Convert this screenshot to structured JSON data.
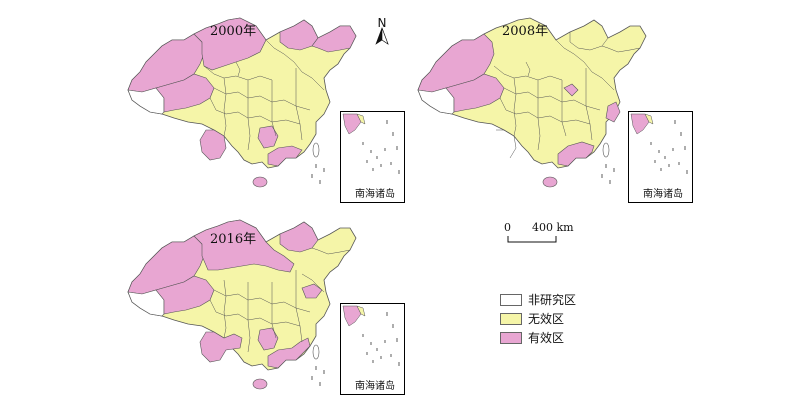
{
  "maps": [
    {
      "year_label": "2000年"
    },
    {
      "year_label": "2008年"
    },
    {
      "year_label": "2016年"
    }
  ],
  "inset_label": "南海诸岛",
  "north_arrow": {
    "letter": "N"
  },
  "scale_bar": {
    "zero": "0",
    "distance": "400 km"
  },
  "legend": [
    {
      "label": "非研究区",
      "color": "#ffffff"
    },
    {
      "label": "无效区",
      "color": "#f5f5a8"
    },
    {
      "label": "有效区",
      "color": "#e8a6d2"
    }
  ],
  "colors": {
    "non_study": "#ffffff",
    "ineffective": "#f5f5a8",
    "effective": "#e8a6d2",
    "border": "#555555"
  },
  "map_classification": {
    "2000": {
      "effective": [
        "Xinjiang",
        "Tibet-north",
        "Qinghai-east",
        "Inner Mongolia-west",
        "Heilongjiang",
        "Jilin",
        "Yunnan",
        "Hunan",
        "Guangdong",
        "Hainan"
      ],
      "ineffective": [
        "Gansu",
        "Sichuan",
        "Guizhou",
        "Guangxi",
        "Central China",
        "Liaoning",
        "Beijing-Hebei",
        "East coast"
      ],
      "non_study": [
        "Tibet-southwest"
      ]
    },
    "2008": {
      "effective": [
        "Xinjiang",
        "Tibet-north",
        "Qinghai",
        "Heilongjiang-west",
        "Guangdong",
        "Hainan",
        "Liaoning-south",
        "Zhejiang"
      ],
      "ineffective": [
        "Inner Mongolia",
        "Heilongjiang",
        "Jilin",
        "Gansu",
        "Sichuan",
        "Yunnan",
        "Guizhou",
        "Guangxi",
        "Central China",
        "North China"
      ],
      "non_study": [
        "Tibet-southwest"
      ]
    },
    "2016": {
      "effective": [
        "Xinjiang",
        "Tibet-north",
        "Qinghai",
        "Inner Mongolia",
        "Heilongjiang",
        "Shandong",
        "Yunnan",
        "Guizhou",
        "Hunan",
        "Guangdong",
        "Hainan",
        "Fujian"
      ],
      "ineffective": [
        "Jilin",
        "Liaoning",
        "Gansu",
        "Sichuan",
        "Guangxi",
        "Shaanxi",
        "Henan",
        "Hubei",
        "Anhui",
        "Jiangsu"
      ],
      "non_study": [
        "Tibet-southwest"
      ]
    }
  }
}
